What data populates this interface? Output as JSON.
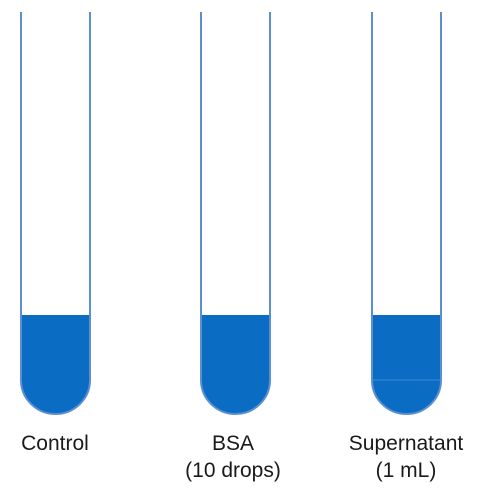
{
  "colors": {
    "liquid": "#0b6cc4",
    "tube_outline": "#5b8fd0",
    "liquid_divider": "#2f7fd0",
    "label_text": "#1a1a1a"
  },
  "tubes": [
    {
      "id": "control",
      "label_lines": [
        "Control",
        ""
      ],
      "has_divider": false
    },
    {
      "id": "bsa",
      "label_lines": [
        "BSA",
        "(10 drops)"
      ],
      "has_divider": false
    },
    {
      "id": "supernatant",
      "label_lines": [
        "Supernatant",
        "(1 mL)"
      ],
      "has_divider": true
    }
  ]
}
